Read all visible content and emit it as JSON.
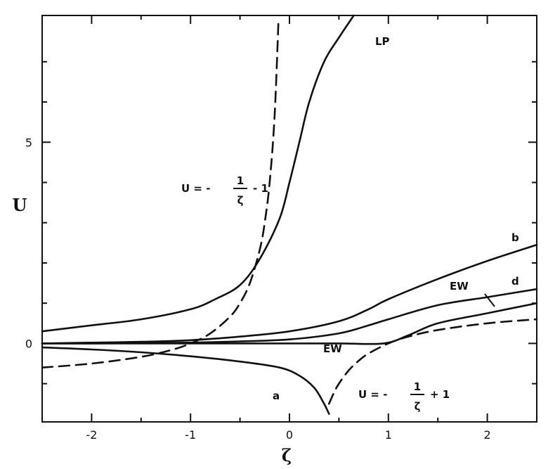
{
  "chart_data": {
    "type": "line",
    "title": "",
    "xlabel": "ζ",
    "ylabel": "U",
    "xlim": [
      -2.5,
      2.5
    ],
    "ylim": [
      -1.95,
      8.15
    ],
    "grid": false,
    "legend": "none",
    "x_ticks": [
      {
        "value": -2,
        "label": "-2"
      },
      {
        "value": -1,
        "label": "-1"
      },
      {
        "value": 0,
        "label": "0"
      },
      {
        "value": 1,
        "label": "1"
      },
      {
        "value": 2,
        "label": "2"
      }
    ],
    "x_minor_ticks": [
      -1.5,
      -0.5,
      0.5,
      1.5
    ],
    "y_ticks": [
      {
        "value": 0,
        "label": "0"
      },
      {
        "value": 5,
        "label": "5"
      }
    ],
    "y_minor_ticks": [
      -1,
      1,
      2,
      3,
      4,
      6,
      7
    ],
    "series": [
      {
        "id": "LP",
        "style": "solid",
        "x": [
          -2.5,
          -2.0,
          -1.5,
          -1.0,
          -0.75,
          -0.5,
          -0.3,
          -0.1,
          0.0,
          0.1,
          0.2,
          0.35,
          0.5,
          0.65
        ],
        "y": [
          0.3,
          0.45,
          0.6,
          0.85,
          1.1,
          1.45,
          2.1,
          3.1,
          4.0,
          5.0,
          6.0,
          7.0,
          7.6,
          8.15
        ]
      },
      {
        "id": "b",
        "style": "solid",
        "x": [
          -2.5,
          -2.0,
          -1.5,
          -1.0,
          -0.5,
          0.0,
          0.5,
          0.8,
          1.0,
          1.5,
          2.0,
          2.5
        ],
        "y": [
          0.0,
          0.02,
          0.04,
          0.08,
          0.17,
          0.3,
          0.55,
          0.85,
          1.1,
          1.6,
          2.05,
          2.45
        ]
      },
      {
        "id": "d",
        "style": "solid",
        "x": [
          -2.5,
          -2.0,
          -1.5,
          -1.0,
          -0.5,
          0.0,
          0.5,
          0.8,
          1.0,
          1.5,
          2.0,
          2.5
        ],
        "y": [
          0.0,
          0.0,
          0.01,
          0.02,
          0.05,
          0.1,
          0.25,
          0.45,
          0.6,
          0.95,
          1.15,
          1.35
        ]
      },
      {
        "id": "EW",
        "style": "solid",
        "x": [
          -2.5,
          -1.0,
          0.0,
          0.5,
          0.95,
          1.2,
          1.5,
          2.0,
          2.5
        ],
        "y": [
          0.0,
          0.0,
          0.0,
          0.0,
          0.0,
          0.2,
          0.5,
          0.75,
          1.0
        ]
      },
      {
        "id": "a",
        "style": "solid",
        "x": [
          -2.5,
          -2.0,
          -1.5,
          -1.0,
          -0.5,
          -0.1,
          0.1,
          0.25,
          0.35,
          0.4
        ],
        "y": [
          -0.1,
          -0.15,
          -0.22,
          -0.32,
          -0.45,
          -0.6,
          -0.8,
          -1.1,
          -1.5,
          -1.75
        ]
      },
      {
        "id": "U = -1/ζ - 1",
        "style": "dashed",
        "x": [
          -2.5,
          -2.0,
          -1.5,
          -1.2,
          -1.0,
          -0.8,
          -0.6,
          -0.5,
          -0.4,
          -0.3,
          -0.25,
          -0.2,
          -0.15,
          -0.11
        ],
        "y": [
          -0.6,
          -0.5,
          -0.333,
          -0.167,
          0.0,
          0.25,
          0.667,
          1.0,
          1.5,
          2.333,
          3.0,
          4.0,
          5.667,
          8.09
        ]
      },
      {
        "id": "U = -1/ζ + 1",
        "style": "dashed",
        "x": [
          0.4,
          0.45,
          0.5,
          0.6,
          0.7,
          0.8,
          1.0,
          1.2,
          1.5,
          2.0,
          2.5
        ],
        "y": [
          -1.5,
          -1.222,
          -1.0,
          -0.667,
          -0.429,
          -0.25,
          0.0,
          0.167,
          0.333,
          0.5,
          0.6
        ]
      }
    ],
    "annotations": {
      "LP": "LP",
      "b": "b",
      "d": "d",
      "a": "a",
      "EW_lower": "EW",
      "EW_upper": "EW",
      "eq_upper_prefix": "U = -",
      "eq_upper_num": "1",
      "eq_upper_den": "ζ",
      "eq_upper_suffix": "- 1",
      "eq_lower_prefix": "U = -",
      "eq_lower_num": "1",
      "eq_lower_den": "ζ",
      "eq_lower_suffix": "+ 1"
    }
  }
}
